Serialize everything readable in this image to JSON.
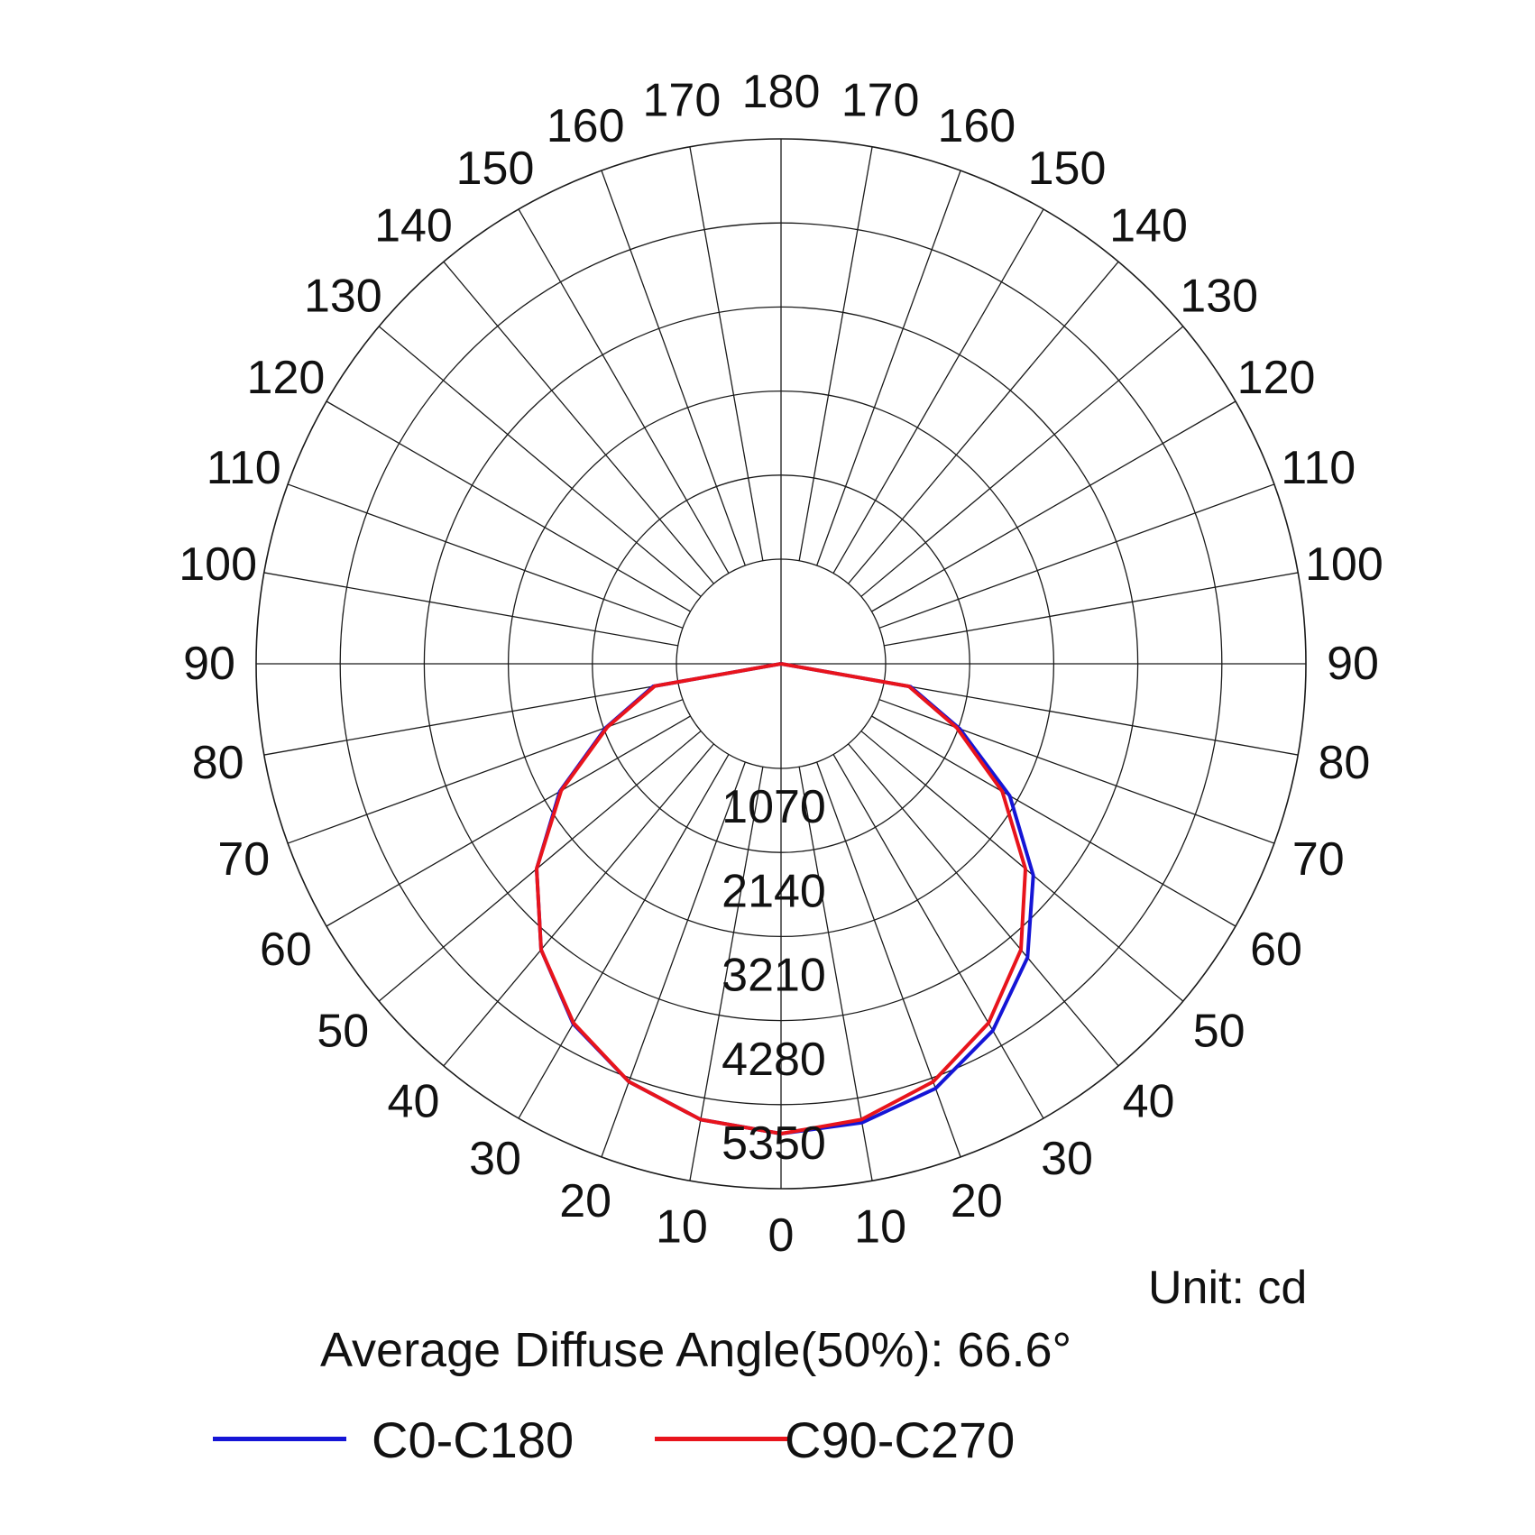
{
  "chart_data": {
    "type": "polar",
    "unit_label": "Unit:",
    "unit_value": "cd",
    "subtitle_label": "Average Diffuse Angle(50%):",
    "subtitle_value": "66.6°",
    "radial_max": 5350,
    "radial_ticks": [
      1070,
      2140,
      3210,
      4280,
      5350
    ],
    "angle_ticks": [
      0,
      10,
      20,
      30,
      40,
      50,
      60,
      70,
      80,
      90,
      100,
      110,
      120,
      130,
      140,
      150,
      160,
      170,
      180
    ],
    "gridline_step_deg": 10,
    "grid": true,
    "legend_placement": "bottom",
    "series": [
      {
        "name": "C0-C180",
        "color": "#1515d6",
        "angles": [
          0,
          10,
          20,
          30,
          40,
          50,
          60,
          70,
          80,
          90
        ],
        "left": [
          4650,
          4560,
          4330,
          3960,
          3420,
          2730,
          1920,
          1040,
          320,
          0
        ],
        "right": [
          4660,
          4600,
          4420,
          4060,
          3550,
          2860,
          2030,
          1090,
          340,
          0
        ]
      },
      {
        "name": "C90-C270",
        "color": "#e8141c",
        "angles": [
          0,
          10,
          20,
          30,
          40,
          50,
          60,
          70,
          80,
          90
        ],
        "left": [
          4650,
          4560,
          4330,
          3950,
          3420,
          2730,
          1900,
          1020,
          300,
          0
        ],
        "right": [
          4650,
          4560,
          4330,
          3950,
          3420,
          2730,
          1920,
          1050,
          320,
          0
        ]
      }
    ]
  }
}
